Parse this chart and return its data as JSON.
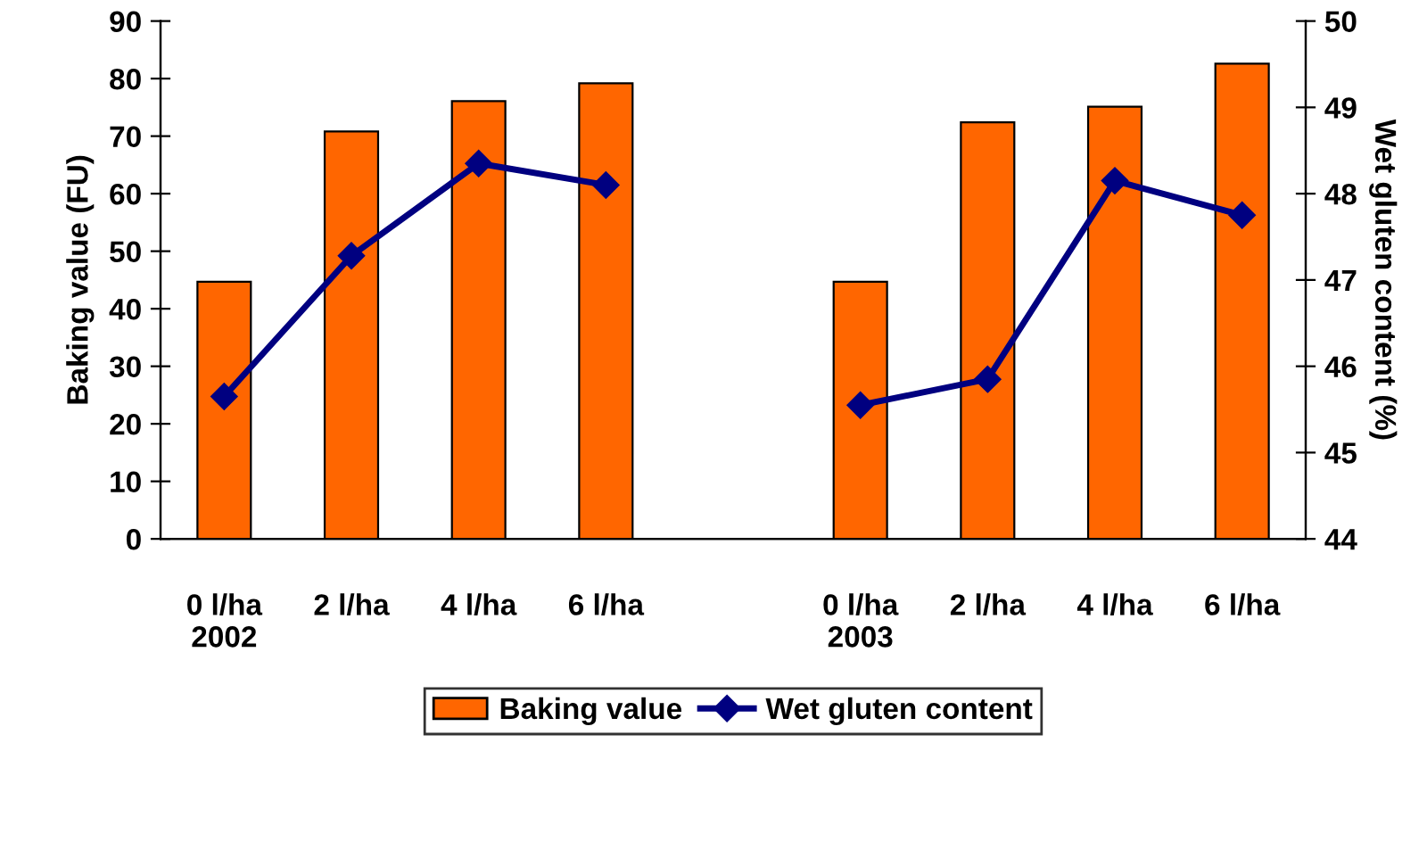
{
  "chart_data": {
    "type": "bar",
    "categories": [
      "0 l/ha\n2002",
      "2 l/ha",
      "4 l/ha",
      "6 l/ha",
      null,
      "0 l/ha\n2003",
      "2 l/ha",
      "4 l/ha",
      "6 l/ha"
    ],
    "series": [
      {
        "name": "Baking value",
        "color": "#ff6600",
        "values": [
          44.7,
          70.8,
          76.1,
          79.2,
          null,
          44.7,
          72.4,
          75.1,
          82.6
        ]
      },
      {
        "name": "Wet gluten content",
        "type": "line",
        "axis": "y2",
        "color": "#000080",
        "marker": "diamond",
        "values": [
          45.65,
          47.28,
          48.35,
          48.1,
          null,
          45.55,
          45.85,
          48.15,
          47.75
        ]
      }
    ],
    "ylabel": "Baking value (FU)",
    "y2label": "Wet gluten content (%)",
    "ylim": [
      0,
      90
    ],
    "yticks": [
      0,
      10,
      20,
      30,
      40,
      50,
      60,
      70,
      80,
      90
    ],
    "y2lim": [
      44,
      50
    ],
    "y2ticks": [
      44,
      45,
      46,
      47,
      48,
      49,
      50
    ],
    "grid": false,
    "legend": "bottom"
  }
}
